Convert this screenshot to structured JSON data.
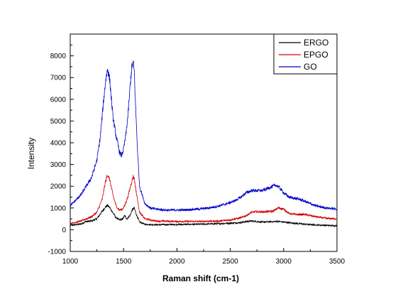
{
  "chart_data": {
    "type": "line",
    "title": "",
    "xlabel": "Raman shift (cm-1)",
    "ylabel": "Intensity",
    "xlim": [
      1000,
      3500
    ],
    "ylim": [
      -1000,
      9000
    ],
    "x_ticks": [
      1000,
      1500,
      2000,
      2500,
      3000,
      3500
    ],
    "y_ticks": [
      -1000,
      0,
      1000,
      2000,
      3000,
      4000,
      5000,
      6000,
      7000,
      8000
    ],
    "x_tick_labels": [
      "1000",
      "1500",
      "2000",
      "2500",
      "3000",
      "3500"
    ],
    "y_tick_labels": [
      "-1000",
      "0",
      "1000",
      "2000",
      "3000",
      "4000",
      "5000",
      "6000",
      "7000",
      "8000"
    ],
    "grid": false,
    "legend_position": "top-right",
    "series": [
      {
        "name": "ERGO",
        "color": "#000000",
        "x": [
          1000,
          1100,
          1150,
          1200,
          1250,
          1300,
          1330,
          1350,
          1370,
          1400,
          1430,
          1460,
          1490,
          1510,
          1530,
          1560,
          1580,
          1600,
          1620,
          1650,
          1700,
          1800,
          2000,
          2200,
          2400,
          2500,
          2600,
          2650,
          2700,
          2800,
          2900,
          2950,
          3000,
          3100,
          3200,
          3300,
          3400,
          3500
        ],
        "y": [
          200,
          260,
          380,
          400,
          500,
          850,
          1050,
          1120,
          1020,
          780,
          550,
          450,
          480,
          650,
          500,
          650,
          900,
          1000,
          700,
          350,
          250,
          230,
          240,
          250,
          280,
          300,
          330,
          380,
          400,
          350,
          370,
          380,
          350,
          300,
          250,
          220,
          200,
          180
        ]
      },
      {
        "name": "EPGO",
        "color": "#d00000",
        "x": [
          1000,
          1100,
          1200,
          1250,
          1300,
          1330,
          1350,
          1370,
          1400,
          1430,
          1460,
          1490,
          1510,
          1540,
          1570,
          1590,
          1600,
          1620,
          1650,
          1700,
          1800,
          2000,
          2200,
          2400,
          2500,
          2600,
          2650,
          2700,
          2750,
          2800,
          2900,
          2950,
          3000,
          3050,
          3100,
          3200,
          3300,
          3400,
          3500
        ],
        "y": [
          280,
          400,
          600,
          800,
          1400,
          2200,
          2550,
          2300,
          1600,
          1100,
          900,
          950,
          1100,
          1500,
          2100,
          2450,
          2350,
          1700,
          800,
          500,
          400,
          380,
          380,
          400,
          450,
          550,
          650,
          800,
          830,
          820,
          850,
          1000,
          950,
          750,
          700,
          700,
          600,
          520,
          500
        ]
      },
      {
        "name": "GO",
        "color": "#0000cc",
        "x": [
          1000,
          1100,
          1150,
          1200,
          1250,
          1280,
          1310,
          1330,
          1350,
          1370,
          1400,
          1430,
          1460,
          1480,
          1500,
          1520,
          1540,
          1560,
          1575,
          1590,
          1600,
          1610,
          1630,
          1650,
          1700,
          1750,
          1800,
          1900,
          2000,
          2100,
          2200,
          2300,
          2400,
          2500,
          2550,
          2600,
          2650,
          2700,
          2750,
          2800,
          2850,
          2900,
          2930,
          2960,
          3000,
          3050,
          3100,
          3150,
          3200,
          3250,
          3300,
          3350,
          3400,
          3500
        ],
        "y": [
          1100,
          1600,
          2000,
          2400,
          3200,
          4200,
          5800,
          6800,
          7400,
          6900,
          5200,
          4300,
          3600,
          3400,
          3700,
          4300,
          5200,
          6500,
          7400,
          7700,
          7300,
          6000,
          3700,
          2000,
          1200,
          1000,
          950,
          900,
          900,
          920,
          950,
          1000,
          1100,
          1250,
          1350,
          1500,
          1700,
          1800,
          1800,
          1800,
          1900,
          2000,
          2050,
          1950,
          1700,
          1500,
          1450,
          1400,
          1300,
          1200,
          1100,
          1050,
          1000,
          950
        ]
      }
    ]
  }
}
